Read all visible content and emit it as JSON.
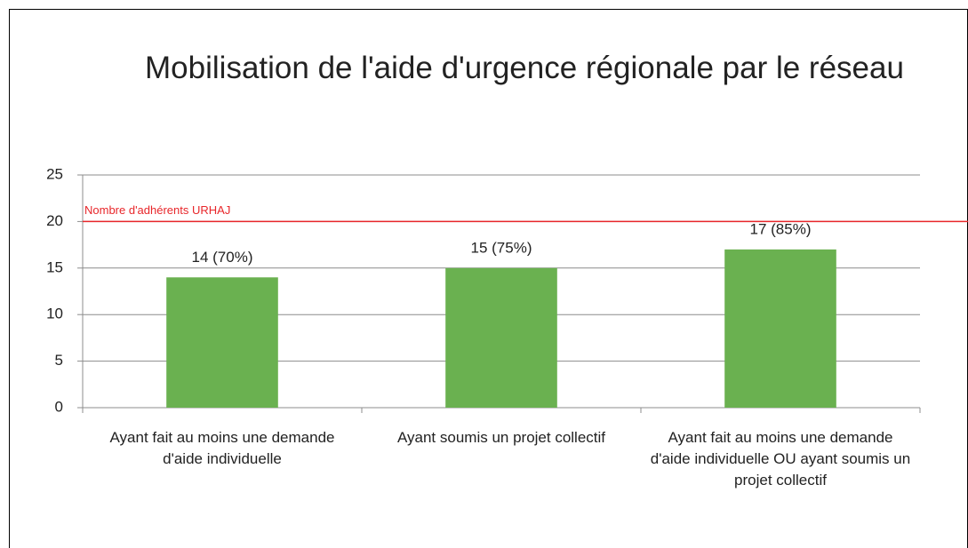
{
  "chart_data": {
    "type": "bar",
    "title": "Mobilisation de l'aide d'urgence régionale par le réseau",
    "categories": [
      "Ayant fait au moins une demande d'aide individuelle",
      "Ayant soumis un projet collectif",
      "Ayant fait au moins une demande d'aide individuelle OU ayant soumis un projet collectif"
    ],
    "values": [
      14,
      15,
      17
    ],
    "value_labels": [
      "14 (70%)",
      "15 (75%)",
      "17 (85%)"
    ],
    "color": "#6ab150",
    "ylim": [
      0,
      25
    ],
    "yticks": [
      0,
      5,
      10,
      15,
      20,
      25
    ],
    "grid": true,
    "annotations": [
      {
        "text": "Nombre d'adhérents URHAJ",
        "value": 20,
        "color": "#e8262a"
      }
    ]
  }
}
